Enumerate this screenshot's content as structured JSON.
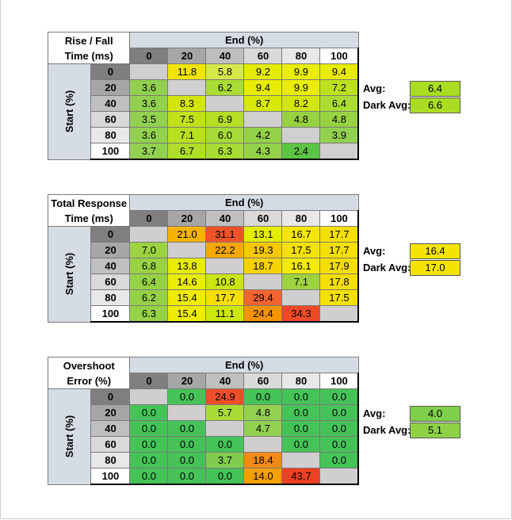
{
  "end_header": "End (%)",
  "start_header": "Start (%)",
  "levels": [
    "0",
    "20",
    "40",
    "60",
    "80",
    "100"
  ],
  "avg_label": "Avg:",
  "dark_avg_label": "Dark Avg:",
  "tables": [
    {
      "title_line1": "Rise / Fall",
      "title_line2": "Time (ms)",
      "avg": "6.4",
      "dark_avg": "6.6",
      "avg_color": "#aadd22",
      "dark_avg_color": "#aadd22",
      "rows": [
        [
          {
            "v": "",
            "c": "#d0cece"
          },
          {
            "v": "11.8",
            "c": "#f2e400"
          },
          {
            "v": "5.8",
            "c": "#d4e84a"
          },
          {
            "v": "9.2",
            "c": "#e4ec00"
          },
          {
            "v": "9.9",
            "c": "#eaed00"
          },
          {
            "v": "9.4",
            "c": "#e8ec00"
          }
        ],
        [
          {
            "v": "3.6",
            "c": "#92d050"
          },
          {
            "v": "",
            "c": "#d0cece"
          },
          {
            "v": "6.2",
            "c": "#a8dc34"
          },
          {
            "v": "9.4",
            "c": "#e8ec00"
          },
          {
            "v": "9.9",
            "c": "#eaed00"
          },
          {
            "v": "7.2",
            "c": "#bbe11c"
          }
        ],
        [
          {
            "v": "3.6",
            "c": "#92d050"
          },
          {
            "v": "8.3",
            "c": "#d2e60c"
          },
          {
            "v": "",
            "c": "#d0cece"
          },
          {
            "v": "8.7",
            "c": "#d8e808"
          },
          {
            "v": "8.2",
            "c": "#d2e60c"
          },
          {
            "v": "6.4",
            "c": "#aadd30"
          }
        ],
        [
          {
            "v": "3.5",
            "c": "#92d050"
          },
          {
            "v": "7.5",
            "c": "#c0e218"
          },
          {
            "v": "6.9",
            "c": "#b5df24"
          },
          {
            "v": "",
            "c": "#d0cece"
          },
          {
            "v": "4.8",
            "c": "#97d240"
          },
          {
            "v": "4.8",
            "c": "#97d240"
          }
        ],
        [
          {
            "v": "3.6",
            "c": "#92d050"
          },
          {
            "v": "7.1",
            "c": "#b8e020"
          },
          {
            "v": "6.0",
            "c": "#a5da38"
          },
          {
            "v": "4.2",
            "c": "#94d148"
          },
          {
            "v": "",
            "c": "#d0cece"
          },
          {
            "v": "3.9",
            "c": "#92d050"
          }
        ],
        [
          {
            "v": "3.7",
            "c": "#92d050"
          },
          {
            "v": "6.7",
            "c": "#b0de2a"
          },
          {
            "v": "6.3",
            "c": "#a8dc34"
          },
          {
            "v": "4.3",
            "c": "#94d148"
          },
          {
            "v": "2.4",
            "c": "#5cc444"
          },
          {
            "v": "",
            "c": "#d0cece"
          }
        ]
      ]
    },
    {
      "title_line1": "Total Response",
      "title_line2": "Time (ms)",
      "avg": "16.4",
      "dark_avg": "17.0",
      "avg_color": "#f5e400",
      "dark_avg_color": "#f5e400",
      "rows": [
        [
          {
            "v": "",
            "c": "#d0cece"
          },
          {
            "v": "21.0",
            "c": "#f6b200"
          },
          {
            "v": "31.1",
            "c": "#f05228"
          },
          {
            "v": "13.1",
            "c": "#e4ec00"
          },
          {
            "v": "16.7",
            "c": "#f5e600"
          },
          {
            "v": "17.7",
            "c": "#f5df00"
          }
        ],
        [
          {
            "v": "7.0",
            "c": "#9bd341"
          },
          {
            "v": "",
            "c": "#d0cece"
          },
          {
            "v": "22.2",
            "c": "#f6a800"
          },
          {
            "v": "19.3",
            "c": "#f6c800"
          },
          {
            "v": "17.5",
            "c": "#f5e100"
          },
          {
            "v": "17.7",
            "c": "#f5df00"
          }
        ],
        [
          {
            "v": "6.8",
            "c": "#99d243"
          },
          {
            "v": "13.8",
            "c": "#e8ec00"
          },
          {
            "v": "",
            "c": "#d0cece"
          },
          {
            "v": "18.7",
            "c": "#f6d200"
          },
          {
            "v": "16.1",
            "c": "#f2ea00"
          },
          {
            "v": "17.9",
            "c": "#f5dd00"
          }
        ],
        [
          {
            "v": "6.4",
            "c": "#96d246"
          },
          {
            "v": "14.6",
            "c": "#eaed00"
          },
          {
            "v": "10.8",
            "c": "#cbe511"
          },
          {
            "v": "",
            "c": "#d0cece"
          },
          {
            "v": "7.1",
            "c": "#9dd33f"
          },
          {
            "v": "17.8",
            "c": "#f5de00"
          }
        ],
        [
          {
            "v": "6.2",
            "c": "#95d147"
          },
          {
            "v": "15.4",
            "c": "#eeec00"
          },
          {
            "v": "17.7",
            "c": "#f5df00"
          },
          {
            "v": "29.4",
            "c": "#f16430"
          },
          {
            "v": "",
            "c": "#d0cece"
          },
          {
            "v": "17.5",
            "c": "#f5e100"
          }
        ],
        [
          {
            "v": "6.3",
            "c": "#96d246"
          },
          {
            "v": "15.4",
            "c": "#eeec00"
          },
          {
            "v": "11.1",
            "c": "#cfe60e"
          },
          {
            "v": "24.4",
            "c": "#f69400"
          },
          {
            "v": "34.3",
            "c": "#ee4a28"
          },
          {
            "v": "",
            "c": "#d0cece"
          }
        ]
      ]
    },
    {
      "title_line1": "Overshoot",
      "title_line2": "Error (%)",
      "avg": "4.0",
      "dark_avg": "5.1",
      "avg_color": "#7fcf4a",
      "dark_avg_color": "#8ed145",
      "rows": [
        [
          {
            "v": "",
            "c": "#d0cece"
          },
          {
            "v": "0.0",
            "c": "#45c359"
          },
          {
            "v": "24.9",
            "c": "#f04e28"
          },
          {
            "v": "0.0",
            "c": "#45c359"
          },
          {
            "v": "0.0",
            "c": "#45c359"
          },
          {
            "v": "0.0",
            "c": "#45c359"
          }
        ],
        [
          {
            "v": "0.0",
            "c": "#45c359"
          },
          {
            "v": "",
            "c": "#d0cece"
          },
          {
            "v": "5.7",
            "c": "#a8dc34"
          },
          {
            "v": "4.8",
            "c": "#92d050"
          },
          {
            "v": "0.0",
            "c": "#45c359"
          },
          {
            "v": "0.0",
            "c": "#45c359"
          }
        ],
        [
          {
            "v": "0.0",
            "c": "#45c359"
          },
          {
            "v": "0.0",
            "c": "#45c359"
          },
          {
            "v": "",
            "c": "#d0cece"
          },
          {
            "v": "4.7",
            "c": "#92d050"
          },
          {
            "v": "0.0",
            "c": "#45c359"
          },
          {
            "v": "0.0",
            "c": "#45c359"
          }
        ],
        [
          {
            "v": "0.0",
            "c": "#45c359"
          },
          {
            "v": "0.0",
            "c": "#45c359"
          },
          {
            "v": "0.0",
            "c": "#45c359"
          },
          {
            "v": "",
            "c": "#d0cece"
          },
          {
            "v": "0.0",
            "c": "#45c359"
          },
          {
            "v": "0.0",
            "c": "#45c359"
          }
        ],
        [
          {
            "v": "0.0",
            "c": "#45c359"
          },
          {
            "v": "0.0",
            "c": "#45c359"
          },
          {
            "v": "3.7",
            "c": "#80cc4c"
          },
          {
            "v": "18.4",
            "c": "#f28a1a"
          },
          {
            "v": "",
            "c": "#d0cece"
          },
          {
            "v": "0.0",
            "c": "#45c359"
          }
        ],
        [
          {
            "v": "0.0",
            "c": "#45c359"
          },
          {
            "v": "0.0",
            "c": "#45c359"
          },
          {
            "v": "0.0",
            "c": "#45c359"
          },
          {
            "v": "14.0",
            "c": "#f5a000"
          },
          {
            "v": "43.7",
            "c": "#ee4022"
          },
          {
            "v": "",
            "c": "#d0cece"
          }
        ]
      ]
    }
  ],
  "colors": {
    "header_blue": "#d6dce4",
    "level_greys": [
      "#7f7f7f",
      "#a6a6a6",
      "#bfbfbf",
      "#d9d9d9",
      "#e8e8e8",
      "#ffffff"
    ]
  }
}
